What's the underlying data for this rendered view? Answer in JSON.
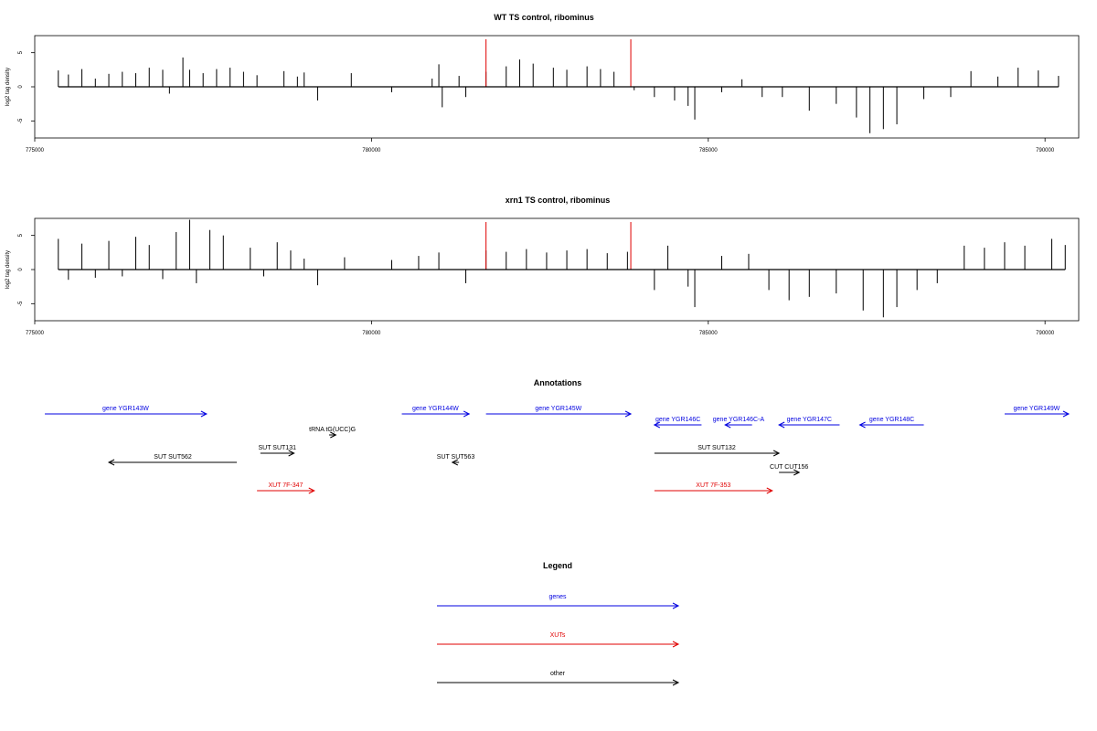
{
  "chart_data": [
    {
      "type": "bar",
      "title": "WT TS control, ribominus",
      "ylabel": "log2 tag density",
      "xlabel": "",
      "xlim": [
        775000,
        790500
      ],
      "ylim": [
        -7.5,
        7.5
      ],
      "x_ticks": [
        "775000",
        "780000",
        "785000",
        "790000"
      ],
      "y_ticks": [
        "-5",
        "0",
        "5"
      ],
      "grid": false,
      "markers": [
        781700,
        783850
      ],
      "marker_color": "#e00000",
      "series": [
        {
          "values": [
            [
              775350,
              2.4
            ],
            [
              775500,
              1.8
            ],
            [
              775700,
              2.6
            ],
            [
              775900,
              1.2
            ],
            [
              776100,
              1.9
            ],
            [
              776300,
              2.2
            ],
            [
              776500,
              2.0
            ],
            [
              776700,
              2.8
            ],
            [
              776900,
              2.5
            ],
            [
              777000,
              -1.0
            ],
            [
              777200,
              4.3
            ],
            [
              777300,
              2.5
            ],
            [
              777500,
              2.0
            ],
            [
              777700,
              2.6
            ],
            [
              777900,
              2.8
            ],
            [
              778100,
              2.2
            ],
            [
              778300,
              1.7
            ],
            [
              778700,
              2.3
            ],
            [
              778900,
              1.5
            ],
            [
              779000,
              2.1
            ],
            [
              779200,
              -2.0
            ],
            [
              779700,
              2.0
            ],
            [
              780300,
              -0.8
            ],
            [
              780900,
              1.2
            ],
            [
              781000,
              3.3
            ],
            [
              781050,
              -3.0
            ],
            [
              781300,
              1.6
            ],
            [
              781400,
              -1.5
            ],
            [
              781700,
              2.2
            ],
            [
              782000,
              3.0
            ],
            [
              782200,
              4.0
            ],
            [
              782400,
              3.4
            ],
            [
              782700,
              2.8
            ],
            [
              782900,
              2.5
            ],
            [
              783200,
              3.0
            ],
            [
              783400,
              2.6
            ],
            [
              783600,
              2.2
            ],
            [
              783900,
              -0.5
            ],
            [
              784200,
              -1.5
            ],
            [
              784500,
              -2.0
            ],
            [
              784700,
              -2.8
            ],
            [
              784800,
              -4.8
            ],
            [
              785200,
              -0.8
            ],
            [
              785500,
              1.1
            ],
            [
              785800,
              -1.5
            ],
            [
              786100,
              -1.5
            ],
            [
              786500,
              -3.5
            ],
            [
              786900,
              -2.5
            ],
            [
              787200,
              -4.5
            ],
            [
              787400,
              -6.8
            ],
            [
              787600,
              -6.2
            ],
            [
              787800,
              -5.5
            ],
            [
              788200,
              -1.8
            ],
            [
              788600,
              -1.5
            ],
            [
              788900,
              2.3
            ],
            [
              789300,
              1.5
            ],
            [
              789600,
              2.8
            ],
            [
              789900,
              2.4
            ],
            [
              790200,
              1.6
            ]
          ]
        }
      ]
    },
    {
      "type": "bar",
      "title": "xrn1 TS control, ribominus",
      "ylabel": "log2 tag density",
      "xlabel": "",
      "xlim": [
        775000,
        790500
      ],
      "ylim": [
        -7.5,
        7.5
      ],
      "x_ticks": [
        "775000",
        "780000",
        "785000",
        "790000"
      ],
      "y_ticks": [
        "-5",
        "0",
        "5"
      ],
      "grid": false,
      "markers": [
        781700,
        783850
      ],
      "marker_color": "#e00000",
      "series": [
        {
          "values": [
            [
              775350,
              4.5
            ],
            [
              775500,
              -1.5
            ],
            [
              775700,
              3.8
            ],
            [
              775900,
              -1.2
            ],
            [
              776100,
              4.2
            ],
            [
              776300,
              -1.0
            ],
            [
              776500,
              4.8
            ],
            [
              776700,
              3.6
            ],
            [
              776900,
              -1.4
            ],
            [
              777100,
              5.5
            ],
            [
              777300,
              7.3
            ],
            [
              777400,
              -2.0
            ],
            [
              777600,
              5.8
            ],
            [
              777800,
              5.0
            ],
            [
              778200,
              3.2
            ],
            [
              778400,
              -1.0
            ],
            [
              778600,
              4.0
            ],
            [
              778800,
              2.8
            ],
            [
              779000,
              1.6
            ],
            [
              779200,
              -2.3
            ],
            [
              779600,
              1.8
            ],
            [
              780300,
              1.4
            ],
            [
              780700,
              2.0
            ],
            [
              781000,
              2.5
            ],
            [
              781400,
              -2.0
            ],
            [
              781700,
              2.8
            ],
            [
              782000,
              2.6
            ],
            [
              782300,
              3.0
            ],
            [
              782600,
              2.5
            ],
            [
              782900,
              2.8
            ],
            [
              783200,
              3.0
            ],
            [
              783500,
              2.4
            ],
            [
              783800,
              2.6
            ],
            [
              784200,
              -3.0
            ],
            [
              784400,
              3.5
            ],
            [
              784700,
              -2.5
            ],
            [
              784800,
              -5.5
            ],
            [
              785200,
              2.0
            ],
            [
              785600,
              2.3
            ],
            [
              785900,
              -3.0
            ],
            [
              786200,
              -4.5
            ],
            [
              786500,
              -4.0
            ],
            [
              786900,
              -3.5
            ],
            [
              787300,
              -6.0
            ],
            [
              787600,
              -7.0
            ],
            [
              787800,
              -5.5
            ],
            [
              788100,
              -3.0
            ],
            [
              788400,
              -2.0
            ],
            [
              788800,
              3.5
            ],
            [
              789100,
              3.2
            ],
            [
              789400,
              4.0
            ],
            [
              789700,
              3.5
            ],
            [
              790100,
              4.5
            ],
            [
              790300,
              3.6
            ]
          ]
        }
      ]
    },
    {
      "type": "annotation_track",
      "title": "Annotations",
      "xlim": [
        775000,
        790500
      ],
      "features": [
        {
          "label": "gene YGR143W",
          "start": 775150,
          "end": 777550,
          "strand": "+",
          "row": 0,
          "class": "gene"
        },
        {
          "label": "gene YGR144W",
          "start": 780450,
          "end": 781450,
          "strand": "+",
          "row": 0,
          "class": "gene"
        },
        {
          "label": "gene YGR145W",
          "start": 781700,
          "end": 783850,
          "strand": "+",
          "row": 0,
          "class": "gene"
        },
        {
          "label": "gene YGR146C",
          "start": 784200,
          "end": 784900,
          "strand": "-",
          "row": 1,
          "class": "gene"
        },
        {
          "label": "gene YGR146C-A",
          "start": 785250,
          "end": 785650,
          "strand": "-",
          "row": 1,
          "class": "gene"
        },
        {
          "label": "gene YGR147C",
          "start": 786050,
          "end": 786950,
          "strand": "-",
          "row": 1,
          "class": "gene"
        },
        {
          "label": "gene YGR148C",
          "start": 787250,
          "end": 788200,
          "strand": "-",
          "row": 1,
          "class": "gene"
        },
        {
          "label": "gene YGR149W",
          "start": 789400,
          "end": 790350,
          "strand": "+",
          "row": 0,
          "class": "gene"
        },
        {
          "label": "tRNA tG(UCC)G",
          "start": 779370,
          "end": 779470,
          "strand": "+",
          "row": 2,
          "class": "other"
        },
        {
          "label": "SUT SUT562",
          "start": 776100,
          "end": 778000,
          "strand": "-",
          "row": 4,
          "class": "other"
        },
        {
          "label": "SUT SUT131",
          "start": 778350,
          "end": 778850,
          "strand": "+",
          "row": 3,
          "class": "other"
        },
        {
          "label": "SUT SUT563",
          "start": 781200,
          "end": 781300,
          "strand": "-",
          "row": 4,
          "class": "other"
        },
        {
          "label": "SUT SUT132",
          "start": 784200,
          "end": 786050,
          "strand": "+",
          "row": 3,
          "class": "other"
        },
        {
          "label": "CUT CUT156",
          "start": 786050,
          "end": 786350,
          "strand": "+",
          "row": 5,
          "class": "other"
        },
        {
          "label": "XUT 7F-347",
          "start": 778300,
          "end": 779150,
          "strand": "+",
          "row": 6,
          "class": "xut"
        },
        {
          "label": "XUT 7F-353",
          "start": 784200,
          "end": 785950,
          "strand": "+",
          "row": 6,
          "class": "xut"
        }
      ]
    }
  ],
  "legend": {
    "title": "Legend",
    "entries": [
      {
        "label": "genes",
        "color": "#0000e0"
      },
      {
        "label": "XUTs",
        "color": "#e00000"
      },
      {
        "label": "other",
        "color": "#000000"
      }
    ]
  },
  "colors": {
    "gene": "#0000e0",
    "xut": "#e00000",
    "other": "#000000",
    "marker": "#e00000"
  }
}
